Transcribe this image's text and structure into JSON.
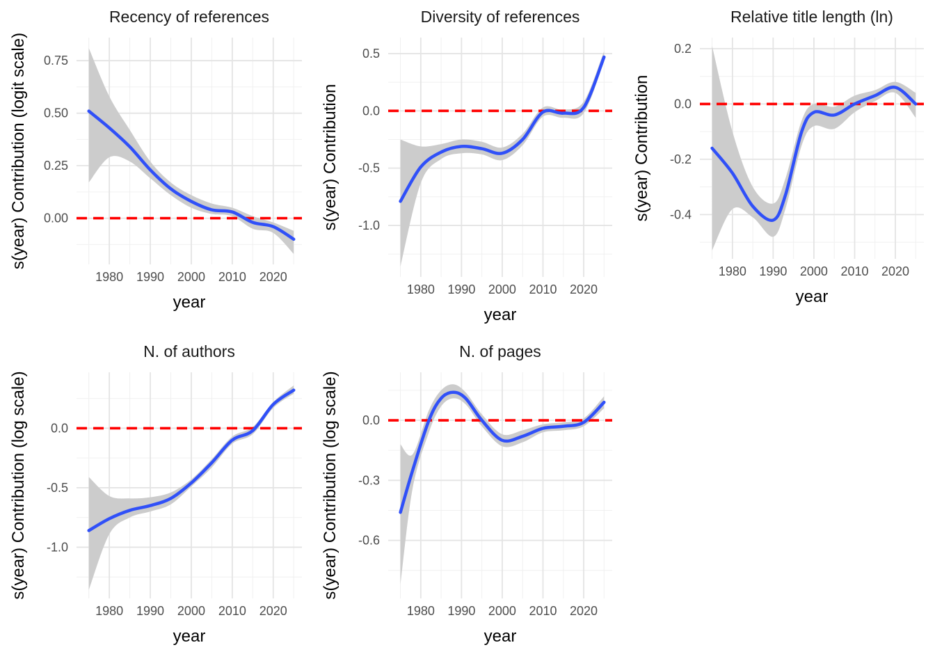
{
  "chart_data": [
    {
      "type": "line",
      "title": "Recency of references",
      "xlabel": "year",
      "ylabel": "s(year) Contribution (logit scale)",
      "xlim": [
        1972,
        2027
      ],
      "ylim": [
        -0.22,
        0.86
      ],
      "xticks": [
        1980,
        1990,
        2000,
        2010,
        2020
      ],
      "yticks": [
        0,
        0.25,
        0.5,
        0.75
      ],
      "ytick_labels": [
        "0.00",
        "0.25",
        "0.50",
        "0.75"
      ],
      "grid": true,
      "reference_line": 0,
      "x": [
        1975,
        1980,
        1985,
        1990,
        1995,
        2000,
        2005,
        2010,
        2015,
        2020,
        2025
      ],
      "y": [
        0.51,
        0.43,
        0.34,
        0.23,
        0.14,
        0.08,
        0.04,
        0.03,
        -0.02,
        -0.04,
        -0.1
      ],
      "ci_lower": [
        0.17,
        0.29,
        0.27,
        0.19,
        0.11,
        0.05,
        0.02,
        0.01,
        -0.05,
        -0.07,
        -0.17
      ],
      "ci_upper": [
        0.81,
        0.58,
        0.42,
        0.27,
        0.17,
        0.11,
        0.07,
        0.05,
        0.01,
        -0.02,
        -0.06
      ]
    },
    {
      "type": "line",
      "title": "Diversity of references",
      "xlabel": "year",
      "ylabel": "s(year) Contribution",
      "xlim": [
        1972,
        2027
      ],
      "ylim": [
        -1.45,
        0.64
      ],
      "xticks": [
        1980,
        1990,
        2000,
        2010,
        2020
      ],
      "yticks": [
        -1.0,
        -0.5,
        0.0,
        0.5
      ],
      "ytick_labels": [
        "-1.0",
        "-0.5",
        "0.0",
        "0.5"
      ],
      "grid": true,
      "reference_line": 0,
      "x": [
        1975,
        1980,
        1985,
        1990,
        1995,
        2000,
        2005,
        2010,
        2015,
        2020,
        2025
      ],
      "y": [
        -0.79,
        -0.49,
        -0.36,
        -0.31,
        -0.33,
        -0.37,
        -0.25,
        -0.01,
        -0.02,
        0.03,
        0.47
      ],
      "ci_lower": [
        -1.36,
        -0.63,
        -0.42,
        -0.37,
        -0.38,
        -0.43,
        -0.3,
        -0.05,
        -0.06,
        -0.02,
        0.43
      ],
      "ci_upper": [
        -0.25,
        -0.31,
        -0.29,
        -0.25,
        -0.27,
        -0.32,
        -0.2,
        0.03,
        0.01,
        0.08,
        0.52
      ]
    },
    {
      "type": "line",
      "title": "Relative title length (ln)",
      "xlabel": "year",
      "ylabel": "s(year) Contribution",
      "xlim": [
        1972,
        2027
      ],
      "ylim": [
        -0.56,
        0.24
      ],
      "xticks": [
        1980,
        1990,
        2000,
        2010,
        2020
      ],
      "yticks": [
        -0.4,
        -0.2,
        0.0,
        0.2
      ],
      "ytick_labels": [
        "-0.4",
        "-0.2",
        "0.0",
        "0.2"
      ],
      "grid": true,
      "reference_line": 0,
      "x": [
        1975,
        1980,
        1985,
        1990,
        1993,
        1997,
        2000,
        2005,
        2010,
        2015,
        2020,
        2025
      ],
      "y": [
        -0.16,
        -0.25,
        -0.37,
        -0.42,
        -0.33,
        -0.1,
        -0.03,
        -0.04,
        0.0,
        0.03,
        0.06,
        0.0
      ],
      "ci_lower": [
        -0.53,
        -0.38,
        -0.41,
        -0.48,
        -0.38,
        -0.15,
        -0.08,
        -0.09,
        -0.03,
        0.01,
        0.04,
        -0.05
      ],
      "ci_upper": [
        0.21,
        -0.1,
        -0.3,
        -0.36,
        -0.27,
        -0.06,
        0.0,
        -0.01,
        0.03,
        0.05,
        0.08,
        0.04
      ]
    },
    {
      "type": "line",
      "title": "N. of authors",
      "xlabel": "year",
      "ylabel": "s(year) Contribution (log scale)",
      "xlim": [
        1972,
        2027
      ],
      "ylim": [
        -1.43,
        0.47
      ],
      "xticks": [
        1980,
        1990,
        2000,
        2010,
        2020
      ],
      "yticks": [
        -1.0,
        -0.5,
        0.0
      ],
      "ytick_labels": [
        "-1.0",
        "-0.5",
        "0.0"
      ],
      "grid": true,
      "reference_line": 0,
      "x": [
        1975,
        1980,
        1985,
        1990,
        1995,
        2000,
        2005,
        2010,
        2015,
        2020,
        2025
      ],
      "y": [
        -0.86,
        -0.76,
        -0.69,
        -0.65,
        -0.59,
        -0.46,
        -0.29,
        -0.1,
        -0.02,
        0.2,
        0.32
      ],
      "ci_lower": [
        -1.36,
        -0.89,
        -0.75,
        -0.7,
        -0.64,
        -0.49,
        -0.33,
        -0.13,
        -0.05,
        0.17,
        0.29
      ],
      "ci_upper": [
        -0.41,
        -0.57,
        -0.59,
        -0.58,
        -0.54,
        -0.43,
        -0.26,
        -0.07,
        0.01,
        0.22,
        0.36
      ]
    },
    {
      "type": "line",
      "title": "N. of pages",
      "xlabel": "year",
      "ylabel": "s(year) Contribution (log scale)",
      "xlim": [
        1972,
        2027
      ],
      "ylim": [
        -0.89,
        0.24
      ],
      "xticks": [
        1980,
        1990,
        2000,
        2010,
        2020
      ],
      "yticks": [
        -0.6,
        -0.3,
        0.0
      ],
      "ytick_labels": [
        "-0.6",
        "-0.3",
        "0.0"
      ],
      "grid": true,
      "reference_line": 0,
      "x": [
        1975,
        1978,
        1982,
        1985,
        1988,
        1991,
        1995,
        2000,
        2005,
        2010,
        2015,
        2020,
        2025
      ],
      "y": [
        -0.46,
        -0.25,
        0.0,
        0.11,
        0.14,
        0.11,
        0.0,
        -0.1,
        -0.08,
        -0.04,
        -0.03,
        -0.01,
        0.09
      ],
      "ci_lower": [
        -0.82,
        -0.34,
        -0.06,
        0.07,
        0.11,
        0.08,
        -0.03,
        -0.13,
        -0.11,
        -0.06,
        -0.05,
        -0.03,
        0.06
      ],
      "ci_upper": [
        -0.12,
        -0.17,
        0.05,
        0.15,
        0.18,
        0.14,
        0.03,
        -0.07,
        -0.05,
        -0.02,
        -0.01,
        0.01,
        0.12
      ]
    }
  ]
}
